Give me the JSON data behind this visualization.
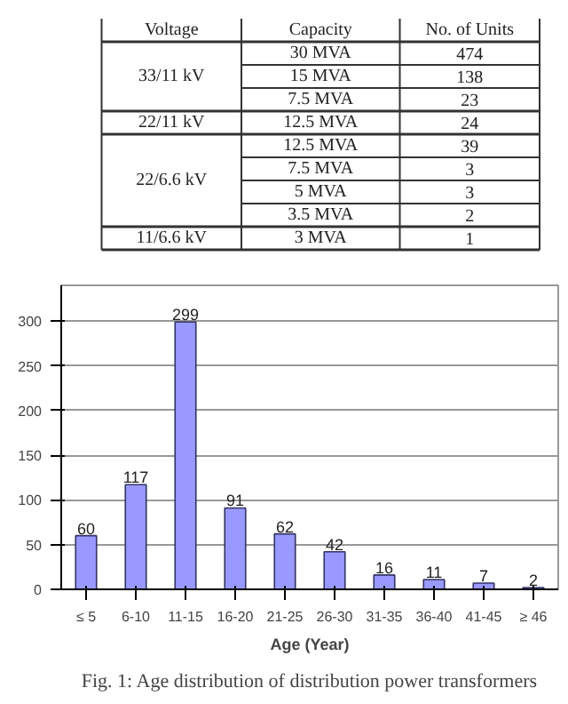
{
  "chart_data": [
    {
      "type": "other",
      "categories": [
        "Voltage",
        "Capacity",
        "No. of Units"
      ],
      "cell_labels": [
        [
          "33/11 kV",
          "30 MVA",
          "474"
        ],
        [
          null,
          "15 MVA",
          "138"
        ],
        [
          null,
          "7.5 MVA",
          "23"
        ],
        [
          "22/11 kV",
          "12.5 MVA",
          "24"
        ],
        [
          "22/6.6 kV",
          "12.5 MVA",
          "39"
        ],
        [
          null,
          "7.5 MVA",
          "3"
        ],
        [
          null,
          "5 MVA",
          "3"
        ],
        [
          null,
          "3.5 MVA",
          "2"
        ],
        [
          "11/6.6 kV",
          "3 MVA",
          "1"
        ]
      ]
    },
    {
      "type": "bar",
      "categories": [
        "≤ 5",
        "6-10",
        "11-15",
        "16-20",
        "21-25",
        "26-30",
        "31-35",
        "36-40",
        "41-45",
        "≥ 46"
      ],
      "values": [
        60,
        117,
        299,
        91,
        62,
        42,
        16,
        11,
        7,
        2
      ],
      "color": "#9999ff",
      "ylim": [
        0,
        340
      ],
      "yticks": [
        0,
        50,
        100,
        150,
        200,
        250,
        300
      ],
      "grid": "y",
      "data_labels": true,
      "xlabel": "Age (Year)",
      "annotations": [
        "Fig. 1: Age distribution of distribution power transformers"
      ]
    }
  ]
}
